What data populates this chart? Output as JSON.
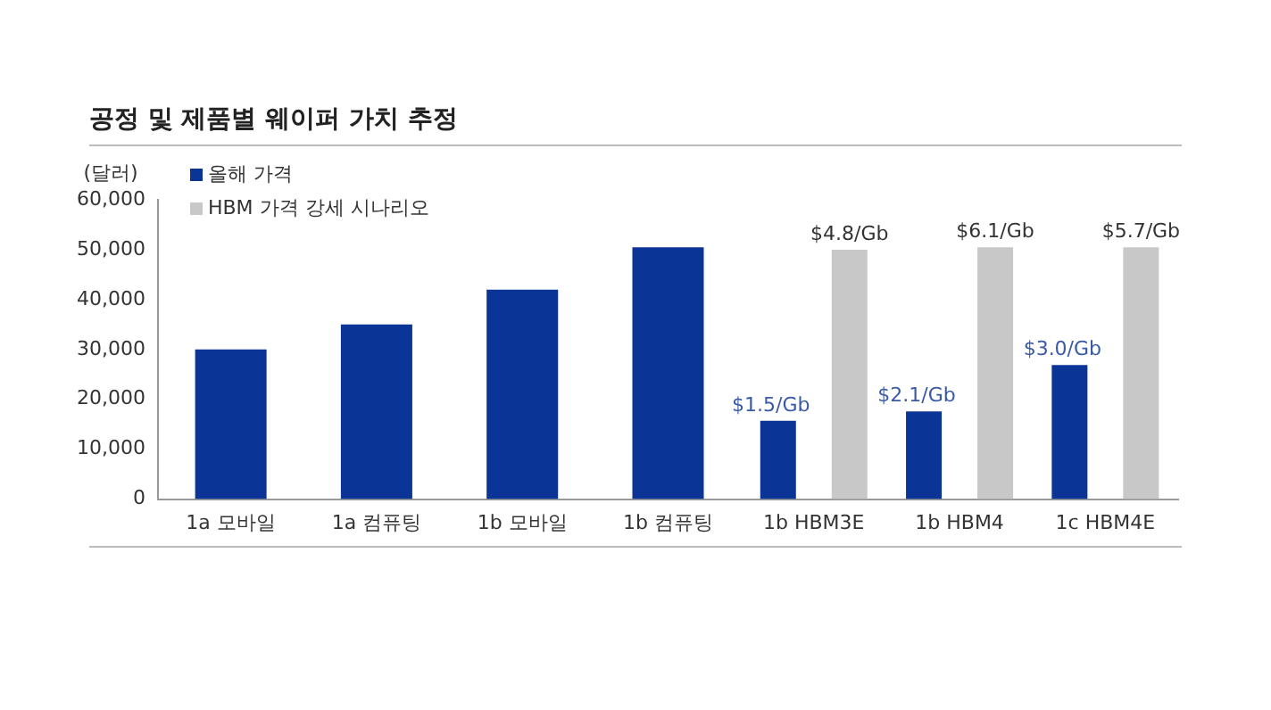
{
  "chart_data": {
    "type": "bar",
    "title": "공정 및 제품별 웨이퍼 가치 추정",
    "ylabel": "(달러)",
    "categories": [
      "1a 모바일",
      "1a 컴퓨팅",
      "1b 모바일",
      "1b 컴퓨팅",
      "1b HBM3E",
      "1b HBM4",
      "1c HBM4E"
    ],
    "series": [
      {
        "name": "올해 가격",
        "color": "#0a3596",
        "values": [
          30000,
          35000,
          42000,
          50500,
          15700,
          17600,
          26900
        ]
      },
      {
        "name": "HBM 가격 강세 시나리오",
        "color": "#c8c8c8",
        "values": [
          null,
          null,
          null,
          null,
          50000,
          50500,
          50500
        ]
      }
    ],
    "annotations": [
      "$1.5/Gb",
      "$2.1/Gb",
      "$3.0/Gb",
      "$4.8/Gb",
      "$6.1/Gb",
      "$5.7/Gb"
    ],
    "ylim": [
      0,
      60000
    ],
    "yticks": [
      {
        "value": 0,
        "label": "0"
      },
      {
        "value": 10000,
        "label": "10,000"
      },
      {
        "value": 20000,
        "label": "20,000"
      },
      {
        "value": 30000,
        "label": "30,000"
      },
      {
        "value": 40000,
        "label": "40,000"
      },
      {
        "value": 50000,
        "label": "50,000"
      },
      {
        "value": 60000,
        "label": "60,000"
      }
    ],
    "grid": false,
    "legend": "top left"
  }
}
